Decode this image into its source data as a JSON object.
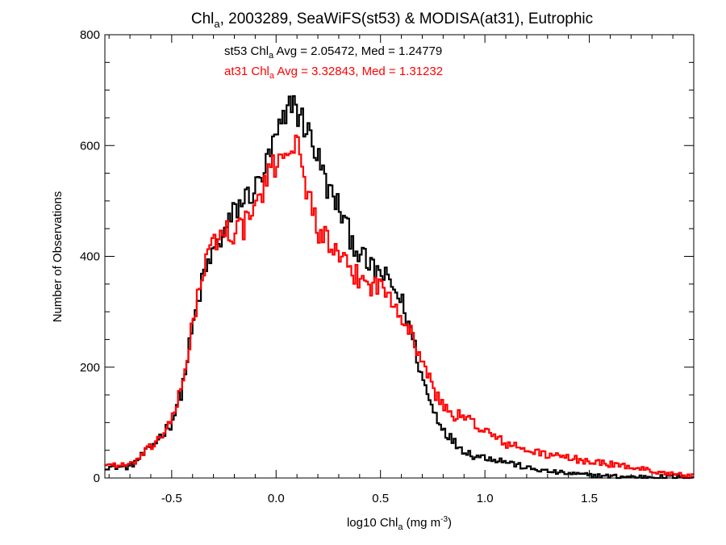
{
  "chart_data": {
    "type": "step",
    "title": {
      "main": "Chl",
      "sub": "a",
      "rest": ", 2003289, SeaWiFS(st53) & MODISA(at31), Eutrophic"
    },
    "xlabel": {
      "pre": "log10 Chl",
      "sub": "a",
      "mid": " (mg m",
      "sup": "-3",
      "post": ")"
    },
    "ylabel": "Number of Observations",
    "xlim": [
      -0.82,
      2.0
    ],
    "ylim": [
      0,
      800
    ],
    "xticks": [
      "-0.5",
      "0.0",
      "0.5",
      "1.0",
      "1.5"
    ],
    "xtick_values": [
      -0.5,
      0.0,
      0.5,
      1.0,
      1.5
    ],
    "yticks": [
      "0",
      "200",
      "400",
      "600",
      "800"
    ],
    "ytick_values": [
      0,
      200,
      400,
      600,
      800
    ],
    "bin_width": 0.01,
    "series": [
      {
        "name": "st53",
        "color": "#000000",
        "label": {
          "pre": "st53 Chl",
          "sub": "a",
          "post": " Avg = 2.05472, Med = 1.24779"
        },
        "profile": [
          [
            -0.82,
            20
          ],
          [
            -0.7,
            20
          ],
          [
            -0.6,
            55
          ],
          [
            -0.5,
            100
          ],
          [
            -0.45,
            160
          ],
          [
            -0.4,
            270
          ],
          [
            -0.35,
            360
          ],
          [
            -0.3,
            410
          ],
          [
            -0.25,
            440
          ],
          [
            -0.2,
            480
          ],
          [
            -0.15,
            505
          ],
          [
            -0.1,
            520
          ],
          [
            -0.05,
            560
          ],
          [
            0.0,
            615
          ],
          [
            0.05,
            650
          ],
          [
            0.08,
            690
          ],
          [
            0.1,
            660
          ],
          [
            0.15,
            630
          ],
          [
            0.2,
            580
          ],
          [
            0.25,
            520
          ],
          [
            0.3,
            490
          ],
          [
            0.35,
            440
          ],
          [
            0.4,
            405
          ],
          [
            0.45,
            380
          ],
          [
            0.5,
            370
          ],
          [
            0.55,
            350
          ],
          [
            0.6,
            320
          ],
          [
            0.65,
            260
          ],
          [
            0.7,
            180
          ],
          [
            0.75,
            125
          ],
          [
            0.8,
            90
          ],
          [
            0.85,
            65
          ],
          [
            0.9,
            50
          ],
          [
            0.95,
            40
          ],
          [
            1.0,
            38
          ],
          [
            1.1,
            30
          ],
          [
            1.2,
            18
          ],
          [
            1.3,
            12
          ],
          [
            1.4,
            8
          ],
          [
            1.5,
            5
          ],
          [
            1.6,
            3
          ],
          [
            1.7,
            2
          ],
          [
            1.8,
            2
          ],
          [
            2.0,
            1
          ]
        ]
      },
      {
        "name": "at31",
        "color": "#ff0000",
        "label": {
          "pre": "at31 Chl",
          "sub": "a",
          "post": " Avg = 3.32843, Med = 1.31232"
        },
        "profile": [
          [
            -0.82,
            25
          ],
          [
            -0.7,
            22
          ],
          [
            -0.6,
            55
          ],
          [
            -0.5,
            100
          ],
          [
            -0.45,
            165
          ],
          [
            -0.4,
            280
          ],
          [
            -0.35,
            370
          ],
          [
            -0.3,
            425
          ],
          [
            -0.25,
            445
          ],
          [
            -0.2,
            445
          ],
          [
            -0.15,
            455
          ],
          [
            -0.1,
            490
          ],
          [
            -0.05,
            530
          ],
          [
            0.0,
            570
          ],
          [
            0.05,
            600
          ],
          [
            0.1,
            600
          ],
          [
            0.15,
            520
          ],
          [
            0.2,
            450
          ],
          [
            0.25,
            425
          ],
          [
            0.3,
            395
          ],
          [
            0.35,
            375
          ],
          [
            0.4,
            360
          ],
          [
            0.45,
            350
          ],
          [
            0.5,
            345
          ],
          [
            0.55,
            330
          ],
          [
            0.6,
            300
          ],
          [
            0.65,
            255
          ],
          [
            0.7,
            215
          ],
          [
            0.75,
            160
          ],
          [
            0.8,
            130
          ],
          [
            0.85,
            115
          ],
          [
            0.9,
            108
          ],
          [
            0.95,
            100
          ],
          [
            1.0,
            85
          ],
          [
            1.1,
            62
          ],
          [
            1.2,
            50
          ],
          [
            1.3,
            42
          ],
          [
            1.4,
            36
          ],
          [
            1.5,
            30
          ],
          [
            1.6,
            25
          ],
          [
            1.7,
            20
          ],
          [
            1.8,
            13
          ],
          [
            1.9,
            7
          ],
          [
            2.0,
            3
          ]
        ]
      }
    ]
  }
}
